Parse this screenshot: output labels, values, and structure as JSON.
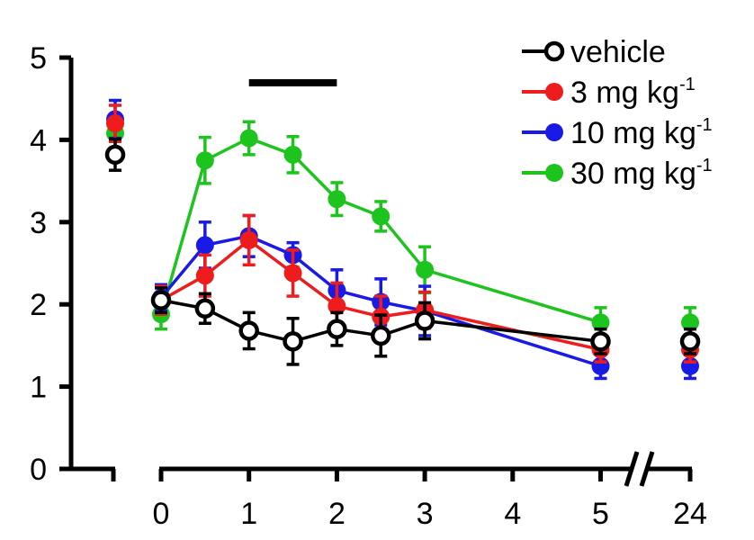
{
  "chart_data": {
    "type": "line",
    "title": "",
    "xlabel": "",
    "ylabel": "",
    "ylim": [
      0,
      5
    ],
    "y_ticks": [
      "0",
      "1",
      "2",
      "3",
      "4",
      "5"
    ],
    "x_ticks": [
      "0",
      "1",
      "2",
      "3",
      "4",
      "5",
      "24"
    ],
    "baseline_label": "",
    "treatment_bar": {
      "start": 1,
      "end": 2
    },
    "legend": {
      "placement": "top-right",
      "entries": [
        {
          "series": "vehicle",
          "text": "vehicle",
          "sup": ""
        },
        {
          "series": "3",
          "text": "3 mg kg",
          "sup": "-1"
        },
        {
          "series": "10",
          "text": "10 mg kg",
          "sup": "-1"
        },
        {
          "series": "30",
          "text": "30 mg kg",
          "sup": "-1"
        }
      ]
    },
    "series": [
      {
        "name": "vehicle",
        "color": "#000000",
        "hollow": true,
        "baseline": {
          "y": 3.82,
          "err": 0.19
        },
        "points": [
          {
            "x": 0,
            "y": 2.05,
            "err": 0.15
          },
          {
            "x": 0.5,
            "y": 1.95,
            "err": 0.18
          },
          {
            "x": 1,
            "y": 1.68,
            "err": 0.22
          },
          {
            "x": 1.5,
            "y": 1.55,
            "err": 0.28
          },
          {
            "x": 2,
            "y": 1.7,
            "err": 0.2
          },
          {
            "x": 2.5,
            "y": 1.62,
            "err": 0.25
          },
          {
            "x": 3,
            "y": 1.8,
            "err": 0.22
          },
          {
            "x": 5,
            "y": 1.55,
            "err": 0.15
          }
        ],
        "late": {
          "y": 1.55,
          "err": 0.15
        }
      },
      {
        "name": "3 mg kg-1",
        "color": "#ee1c1c",
        "hollow": false,
        "baseline": {
          "y": 4.2,
          "err": 0.22
        },
        "points": [
          {
            "x": 0,
            "y": 2.05,
            "err": 0.17
          },
          {
            "x": 0.5,
            "y": 2.35,
            "err": 0.25
          },
          {
            "x": 1,
            "y": 2.78,
            "err": 0.3
          },
          {
            "x": 1.5,
            "y": 2.38,
            "err": 0.28
          },
          {
            "x": 2,
            "y": 1.98,
            "err": 0.28
          },
          {
            "x": 2.5,
            "y": 1.85,
            "err": 0.25
          },
          {
            "x": 3,
            "y": 1.93,
            "err": 0.22
          },
          {
            "x": 5,
            "y": 1.45,
            "err": 0.15
          }
        ],
        "late": {
          "y": 1.45,
          "err": 0.15
        }
      },
      {
        "name": "10 mg kg-1",
        "color": "#1a1ae6",
        "hollow": false,
        "baseline": {
          "y": 4.25,
          "err": 0.23
        },
        "points": [
          {
            "x": 0,
            "y": 2.08,
            "err": 0.16
          },
          {
            "x": 0.5,
            "y": 2.72,
            "err": 0.28
          },
          {
            "x": 1,
            "y": 2.83,
            "err": 0.25
          },
          {
            "x": 1.5,
            "y": 2.6,
            "err": 0.15
          },
          {
            "x": 2,
            "y": 2.17,
            "err": 0.25
          },
          {
            "x": 2.5,
            "y": 2.03,
            "err": 0.28
          },
          {
            "x": 3,
            "y": 1.92,
            "err": 0.3
          },
          {
            "x": 5,
            "y": 1.25,
            "err": 0.15
          }
        ],
        "late": {
          "y": 1.25,
          "err": 0.15
        }
      },
      {
        "name": "30 mg kg-1",
        "color": "#1ec41e",
        "hollow": false,
        "baseline": {
          "y": 4.08,
          "err": 0.19
        },
        "points": [
          {
            "x": 0,
            "y": 1.88,
            "err": 0.18
          },
          {
            "x": 0.5,
            "y": 3.75,
            "err": 0.28
          },
          {
            "x": 1,
            "y": 4.02,
            "err": 0.2
          },
          {
            "x": 1.5,
            "y": 3.82,
            "err": 0.22
          },
          {
            "x": 2,
            "y": 3.28,
            "err": 0.2
          },
          {
            "x": 2.5,
            "y": 3.07,
            "err": 0.18
          },
          {
            "x": 3,
            "y": 2.42,
            "err": 0.28
          },
          {
            "x": 5,
            "y": 1.78,
            "err": 0.18
          }
        ],
        "late": {
          "y": 1.78,
          "err": 0.18
        }
      }
    ]
  }
}
